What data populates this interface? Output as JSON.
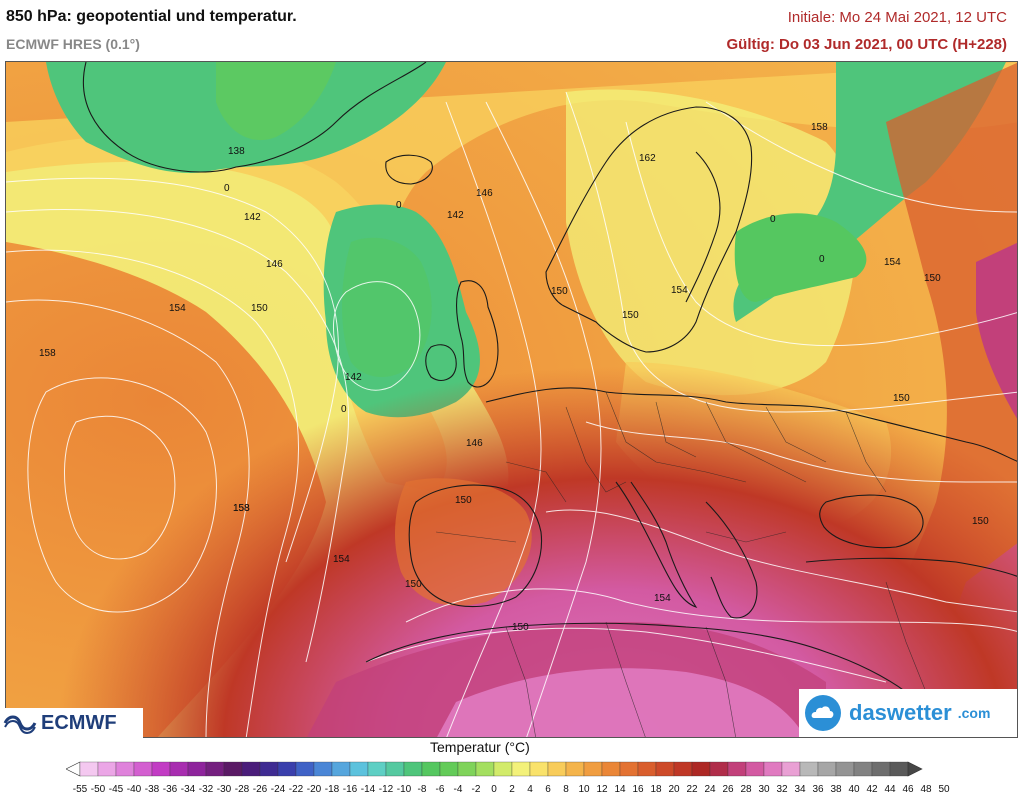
{
  "header": {
    "title": "850 hPa: geopotential und temperatur.",
    "model": "ECMWF HRES (0.1°)",
    "initial": "Initiale: Mo 24 Mai 2021, 12 UTC",
    "valid": "Gültig: Do 03 Jun 2021, 00 UTC (H+228)"
  },
  "logos": {
    "ecmwf": "ECMWF",
    "daswetter": "daswetter",
    "daswetter_domain": ".com"
  },
  "legend": {
    "title": "Temperatur (°C)",
    "ticks": [
      "-55",
      "-50",
      "-45",
      "-40",
      "-38",
      "-36",
      "-34",
      "-32",
      "-30",
      "-28",
      "-26",
      "-24",
      "-22",
      "-20",
      "-18",
      "-16",
      "-14",
      "-12",
      "-10",
      "-8",
      "-6",
      "-4",
      "-2",
      "0",
      "2",
      "4",
      "6",
      "8",
      "10",
      "12",
      "14",
      "16",
      "18",
      "20",
      "22",
      "24",
      "26",
      "28",
      "30",
      "32",
      "34",
      "36",
      "38",
      "40",
      "42",
      "44",
      "46",
      "48",
      "50"
    ],
    "colors": [
      "#ffffff",
      "#f4c8f0",
      "#eba6e6",
      "#df82db",
      "#d35fd0",
      "#c23cc4",
      "#a82db0",
      "#8e249c",
      "#74207f",
      "#5a1a65",
      "#4a1d7a",
      "#3f2b92",
      "#3a3fac",
      "#3f62c6",
      "#4a86d6",
      "#56a6dd",
      "#5cc2dd",
      "#5ecfc4",
      "#55c9a0",
      "#4fc57b",
      "#55c760",
      "#63cb58",
      "#7fd35a",
      "#a4df60",
      "#d2eb6a",
      "#f3f17a",
      "#f9e26b",
      "#f8cc5a",
      "#f4b44b",
      "#f09d40",
      "#ea8637",
      "#e37232",
      "#d95e2d",
      "#cd4a29",
      "#bf3826",
      "#ad2824",
      "#b02d4a",
      "#c2407a",
      "#d35aa2",
      "#e07ac0",
      "#e9a0d4",
      "#b8b8b8",
      "#a6a6a6",
      "#949494",
      "#828282",
      "#6e6e6e",
      "#5a5a5a",
      "#464646"
    ]
  },
  "isohypses": [
    "138",
    "142",
    "146",
    "150",
    "154",
    "158",
    "162",
    "146",
    "142",
    "150",
    "154",
    "150",
    "158",
    "154",
    "150",
    "146",
    "150",
    "154",
    "158",
    "150",
    "150",
    "150",
    "154",
    "150",
    "142",
    "158",
    "0",
    "0",
    "0",
    "0",
    "0",
    "0"
  ]
}
